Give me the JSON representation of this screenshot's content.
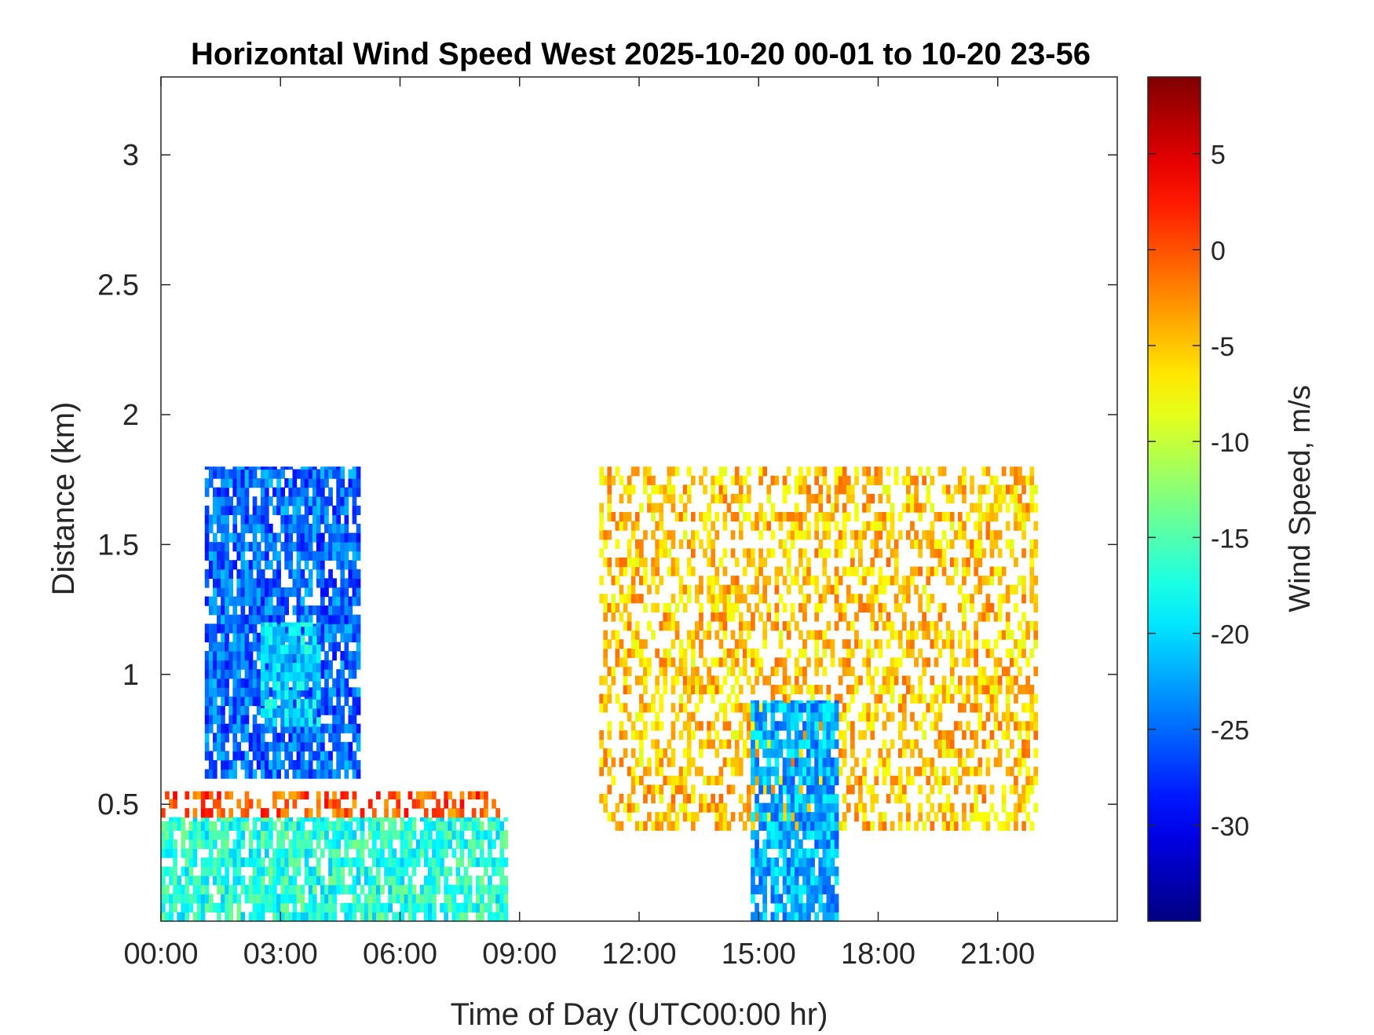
{
  "chart_data": {
    "type": "heatmap",
    "title": "Horizontal Wind Speed West 2025-10-20 00-01 to 10-20 23-56",
    "xlabel": "Time of Day (UTC00:00 hr)",
    "ylabel": "Distance (km)",
    "colorbar_label": "Wind Speed, m/s",
    "x_unit": "hours",
    "xlim": [
      0,
      24
    ],
    "ylim": [
      0.05,
      3.3
    ],
    "clim": [
      -35,
      9
    ],
    "x_ticks": [
      0,
      3,
      6,
      9,
      12,
      15,
      18,
      21
    ],
    "x_tick_labels": [
      "00:00",
      "03:00",
      "06:00",
      "09:00",
      "12:00",
      "15:00",
      "18:00",
      "21:00"
    ],
    "y_ticks": [
      0.5,
      1,
      1.5,
      2,
      2.5,
      3
    ],
    "y_tick_labels": [
      "0.5",
      "1",
      "1.5",
      "2",
      "2.5",
      "3"
    ],
    "colorbar_ticks": [
      5,
      0,
      -5,
      -10,
      -15,
      -20,
      -25,
      -30
    ],
    "colorbar_tick_labels": [
      "5",
      "0",
      "-5",
      "-10",
      "-15",
      "-20",
      "-25",
      "-30"
    ],
    "colormap": "jet",
    "grid": false,
    "regions": [
      {
        "name": "early-morning-near-surface",
        "t": [
          0.0,
          8.7
        ],
        "d": [
          0.05,
          0.45
        ],
        "value": -17
      },
      {
        "name": "early-morning-shear-layer",
        "t": [
          0.0,
          8.5
        ],
        "d": [
          0.45,
          0.55
        ],
        "value": 0
      },
      {
        "name": "early-morning-upper-jet",
        "t": [
          1.1,
          5.0
        ],
        "d": [
          0.6,
          1.8
        ],
        "value": -25
      },
      {
        "name": "early-morning-core",
        "t": [
          2.5,
          4.0
        ],
        "d": [
          0.8,
          1.2
        ],
        "value": -20
      },
      {
        "name": "afternoon-convective-layer",
        "t": [
          11.0,
          22.0
        ],
        "d": [
          0.4,
          1.8
        ],
        "value": -5
      },
      {
        "name": "afternoon-downdrafts",
        "t": [
          14.8,
          17.0
        ],
        "d": [
          0.05,
          0.9
        ],
        "value": -22
      }
    ]
  }
}
